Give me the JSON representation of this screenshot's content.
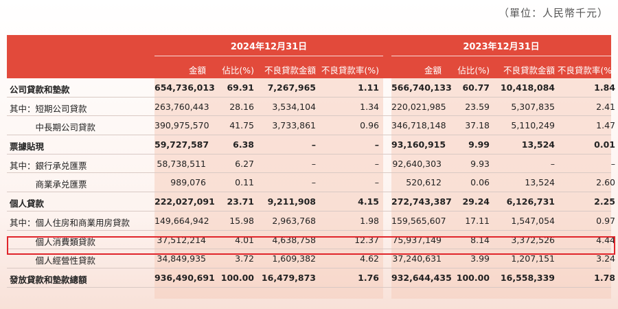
{
  "unit_note": "（單位：人民幣千元）",
  "header": {
    "year_2024": "2024年12月31日",
    "year_2023": "2023年12月31日",
    "columns": [
      "金額",
      "佔比(%)",
      "不良貸款金額",
      "不良貸款率(%)",
      "金額",
      "佔比(%)",
      "不良貸款金額",
      "不良貸款率(%)"
    ]
  },
  "rows": [
    {
      "label": "公司貸款和墊款",
      "bold": true,
      "v": [
        "654,736,013",
        "69.91",
        "7,267,965",
        "1.11",
        "566,740,133",
        "60.77",
        "10,418,084",
        "1.84"
      ]
    },
    {
      "label": "其中：短期公司貸款",
      "bold": false,
      "v": [
        "263,760,443",
        "28.16",
        "3,534,104",
        "1.34",
        "220,021,985",
        "23.59",
        "5,307,835",
        "2.41"
      ]
    },
    {
      "label": "　　　中長期公司貸款",
      "bold": false,
      "v": [
        "390,975,570",
        "41.75",
        "3,733,861",
        "0.96",
        "346,718,148",
        "37.18",
        "5,110,249",
        "1.47"
      ]
    },
    {
      "label": "票據貼現",
      "bold": true,
      "v": [
        "59,727,587",
        "6.38",
        "–",
        "–",
        "93,160,915",
        "9.99",
        "13,524",
        "0.01"
      ]
    },
    {
      "label": "其中：銀行承兑匯票",
      "bold": false,
      "v": [
        "58,738,511",
        "6.27",
        "–",
        "–",
        "92,640,303",
        "9.93",
        "–",
        "–"
      ]
    },
    {
      "label": "　　　商業承兑匯票",
      "bold": false,
      "v": [
        "989,076",
        "0.11",
        "–",
        "–",
        "520,612",
        "0.06",
        "13,524",
        "2.60"
      ]
    },
    {
      "label": "個人貸款",
      "bold": true,
      "v": [
        "222,027,091",
        "23.71",
        "9,211,908",
        "4.15",
        "272,743,387",
        "29.24",
        "6,126,731",
        "2.25"
      ]
    },
    {
      "label": "其中：個人住房和商業用房貸款",
      "bold": false,
      "v": [
        "149,664,942",
        "15.98",
        "2,963,768",
        "1.98",
        "159,565,607",
        "17.11",
        "1,547,054",
        "0.97"
      ]
    },
    {
      "label": "　　　個人消費類貸款",
      "bold": false,
      "v": [
        "37,512,214",
        "4.01",
        "4,638,758",
        "12.37",
        "75,937,149",
        "8.14",
        "3,372,526",
        "4.44"
      ]
    },
    {
      "label": "　　　個人經營性貸款",
      "bold": false,
      "v": [
        "34,849,935",
        "3.72",
        "1,609,382",
        "4.62",
        "37,240,631",
        "3.99",
        "1,207,151",
        "3.24"
      ]
    },
    {
      "label": "發放貸款和墊款總額",
      "bold": true,
      "v": [
        "936,490,691",
        "100.00",
        "16,479,873",
        "1.76",
        "932,644,435",
        "100.00",
        "16,558,339",
        "1.78"
      ]
    }
  ]
}
